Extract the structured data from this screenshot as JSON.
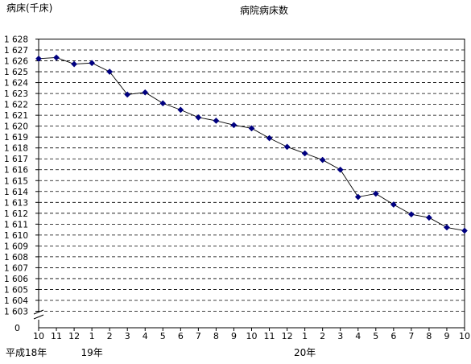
{
  "chart_data": {
    "type": "line",
    "title": "病院病床数",
    "ylabel": "病床(千床)",
    "xlabel": "",
    "x_ticks": [
      "10",
      "11",
      "12",
      "1",
      "2",
      "3",
      "4",
      "5",
      "6",
      "7",
      "8",
      "9",
      "10",
      "11",
      "12",
      "1",
      "2",
      "3",
      "4",
      "5",
      "6",
      "7",
      "8",
      "9",
      "10"
    ],
    "year_labels": [
      {
        "text": "平成18年",
        "at_index": 0
      },
      {
        "text": "19年",
        "at_index": 3
      },
      {
        "text": "20年",
        "at_index": 15
      }
    ],
    "series": [
      {
        "values": [
          1626.2,
          1626.3,
          1625.7,
          1625.8,
          1625.0,
          1622.9,
          1623.1,
          1622.1,
          1621.5,
          1620.8,
          1620.5,
          1620.1,
          1619.8,
          1618.9,
          1618.1,
          1617.5,
          1616.9,
          1616.0,
          1613.5,
          1613.8,
          1612.8,
          1611.9,
          1611.6,
          1610.7,
          1610.4
        ]
      }
    ],
    "y_ticks": [
      {
        "value": 1603,
        "label": "1 603"
      },
      {
        "value": 1604,
        "label": "1 604"
      },
      {
        "value": 1605,
        "label": "1 605"
      },
      {
        "value": 1606,
        "label": "1 606"
      },
      {
        "value": 1607,
        "label": "1 607"
      },
      {
        "value": 1608,
        "label": "1 608"
      },
      {
        "value": 1609,
        "label": "1 609"
      },
      {
        "value": 1610,
        "label": "1 610"
      },
      {
        "value": 1611,
        "label": "1 611"
      },
      {
        "value": 1612,
        "label": "1 612"
      },
      {
        "value": 1613,
        "label": "1 613"
      },
      {
        "value": 1614,
        "label": "1 614"
      },
      {
        "value": 1615,
        "label": "1 615"
      },
      {
        "value": 1616,
        "label": "1 616"
      },
      {
        "value": 1617,
        "label": "1 617"
      },
      {
        "value": 1618,
        "label": "1 618"
      },
      {
        "value": 1619,
        "label": "1 619"
      },
      {
        "value": 1620,
        "label": "1 620"
      },
      {
        "value": 1621,
        "label": "1 621"
      },
      {
        "value": 1622,
        "label": "1 622"
      },
      {
        "value": 1623,
        "label": "1 623"
      },
      {
        "value": 1624,
        "label": "1 624"
      },
      {
        "value": 1625,
        "label": "1 625"
      },
      {
        "value": 1626,
        "label": "1 626"
      },
      {
        "value": 1627,
        "label": "1 627"
      },
      {
        "value": 1628,
        "label": "1 628"
      }
    ],
    "axis_break": true,
    "axis_origin_label": "0",
    "ylim": [
      1603,
      1628
    ],
    "grid": true,
    "legend": "none",
    "colors": {
      "line": "#000000",
      "marker": "#000080",
      "grid": "#000000",
      "axis": "#000000"
    }
  }
}
